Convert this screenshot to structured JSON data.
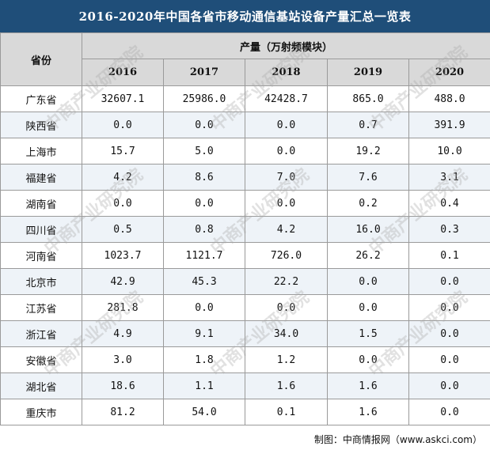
{
  "title": "2016-2020年中国各省市移动通信基站设备产量汇总一览表",
  "header": {
    "corner_label": "省份",
    "unit_label": "产量（万射频模块）",
    "years": [
      "2016",
      "2017",
      "2018",
      "2019",
      "2020"
    ]
  },
  "rows": [
    {
      "province": "广东省",
      "values": [
        "32607.1",
        "25986.0",
        "42428.7",
        "865.0",
        "488.0"
      ]
    },
    {
      "province": "陕西省",
      "values": [
        "0.0",
        "0.0",
        "0.0",
        "0.7",
        "391.9"
      ]
    },
    {
      "province": "上海市",
      "values": [
        "15.7",
        "5.0",
        "0.0",
        "19.2",
        "10.0"
      ]
    },
    {
      "province": "福建省",
      "values": [
        "4.2",
        "8.6",
        "7.0",
        "7.6",
        "3.1"
      ]
    },
    {
      "province": "湖南省",
      "values": [
        "0.0",
        "0.0",
        "0.0",
        "0.2",
        "0.4"
      ]
    },
    {
      "province": "四川省",
      "values": [
        "0.5",
        "0.8",
        "4.2",
        "16.0",
        "0.3"
      ]
    },
    {
      "province": "河南省",
      "values": [
        "1023.7",
        "1121.7",
        "726.0",
        "26.2",
        "0.1"
      ]
    },
    {
      "province": "北京市",
      "values": [
        "42.9",
        "45.3",
        "22.2",
        "0.0",
        "0.0"
      ]
    },
    {
      "province": "江苏省",
      "values": [
        "281.8",
        "0.0",
        "0.0",
        "0.0",
        "0.0"
      ]
    },
    {
      "province": "浙江省",
      "values": [
        "4.9",
        "9.1",
        "34.0",
        "1.5",
        "0.0"
      ]
    },
    {
      "province": "安徽省",
      "values": [
        "3.0",
        "1.8",
        "1.2",
        "0.0",
        "0.0"
      ]
    },
    {
      "province": "湖北省",
      "values": [
        "18.6",
        "1.1",
        "1.6",
        "1.6",
        "0.0"
      ]
    },
    {
      "province": "重庆市",
      "values": [
        "81.2",
        "54.0",
        "0.1",
        "1.6",
        "0.0"
      ]
    }
  ],
  "source": "制图：中商情报网（www.askci.com）",
  "watermark_text": "中商产业研究院",
  "colors": {
    "title_bg": "#1f4e79",
    "header_bg": "#d9d9d9",
    "alt_row_bg": "#eef3f8",
    "border": "#9a9a9a"
  }
}
